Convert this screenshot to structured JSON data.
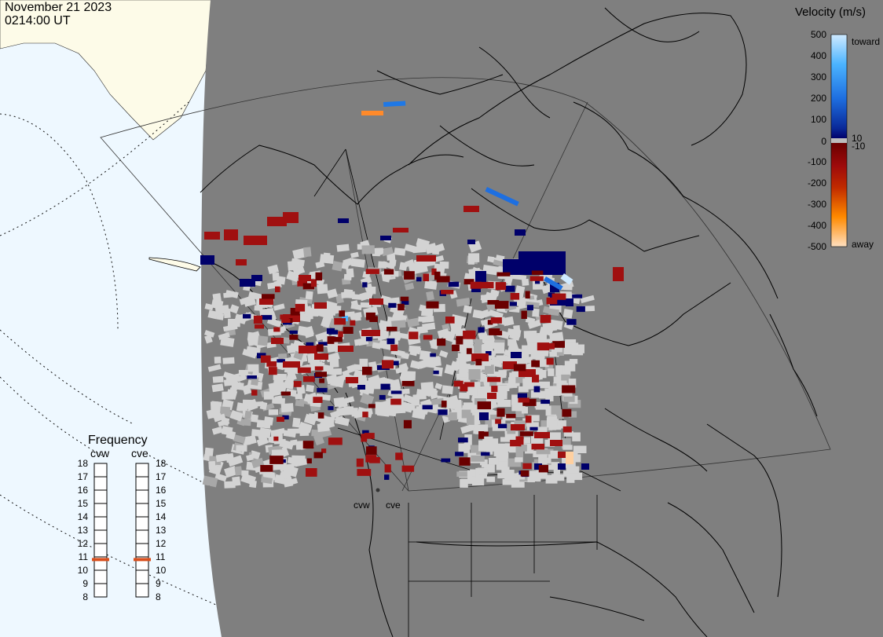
{
  "header": {
    "date": "November 21 2023",
    "time": "0214:00 UT"
  },
  "map": {
    "background_color": "#7f7f7f",
    "polar_background_color": "#eef8ff",
    "land_light_color": "#fdfbe8",
    "scatter_color": "#d3d3d3",
    "ground_scatter_color": "#a8a8a8",
    "fov_outline_color": "#333333",
    "coastline_color": "#000000"
  },
  "radars": [
    {
      "code": "cvw",
      "label": "cvw",
      "frequency": "10.8"
    },
    {
      "code": "cve",
      "label": "cve",
      "frequency": "10.8"
    }
  ],
  "velocity_legend": {
    "title": "Velocity (m/s)",
    "ticks": [
      "500",
      "400",
      "300",
      "200",
      "100",
      "10",
      "0",
      "-10",
      "-100",
      "-200",
      "-300",
      "-400",
      "-500"
    ],
    "toward_label": "toward",
    "away_label": "away",
    "colors": {
      "toward_strong": "#cfeaff",
      "toward_mid": "#1e90ff",
      "toward_weak": "#0a2a9a",
      "toward_min": "#00006a",
      "zero": "#ffffff",
      "away_min": "#6a0000",
      "away_weak": "#a01010",
      "away_mid": "#e05a00",
      "away_strong": "#ffe0c0"
    }
  },
  "frequency_panel": {
    "title": "Frequency",
    "columns": [
      "cvw",
      "cve"
    ],
    "tick_labels": [
      "18",
      "17",
      "16",
      "15",
      "14",
      "13",
      "12",
      "11",
      "10",
      "9",
      "8"
    ],
    "marker_color": "#d9501e",
    "selected_mhz": [
      10.8,
      10.8
    ]
  }
}
